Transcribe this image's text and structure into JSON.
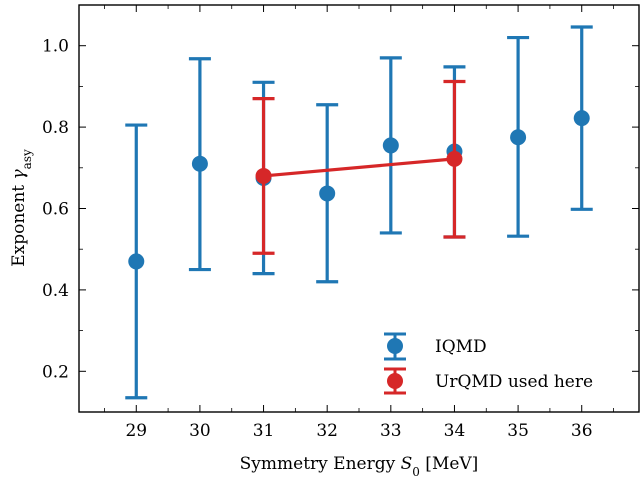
{
  "chart_data": {
    "type": "scatter",
    "xlabel": "Symmetry Energy S₀ [MeV]",
    "xlabel_main": "Symmetry Energy ",
    "xlabel_sym": "S",
    "xlabel_sub": "0",
    "xlabel_unit": " [MeV]",
    "ylabel": "Exponent γ_asy",
    "ylabel_main": "Exponent ",
    "ylabel_sym": "γ",
    "ylabel_sub": "asy",
    "xlim": [
      28.1,
      36.9
    ],
    "ylim": [
      0.1,
      1.1
    ],
    "xticks": [
      29,
      30,
      31,
      32,
      33,
      34,
      35,
      36
    ],
    "yticks": [
      0.2,
      0.4,
      0.6,
      0.8,
      1.0
    ],
    "ytick_labels": [
      "0.2",
      "0.4",
      "0.6",
      "0.8",
      "1.0"
    ],
    "grid": false,
    "legend_position": "bottom-right",
    "series": [
      {
        "name": "IQMD",
        "color": "#1f77b4",
        "connected": false,
        "points": [
          {
            "x": 29,
            "y": 0.47,
            "ylow": 0.135,
            "yhigh": 0.805
          },
          {
            "x": 30,
            "y": 0.71,
            "ylow": 0.45,
            "yhigh": 0.968
          },
          {
            "x": 31,
            "y": 0.675,
            "ylow": 0.44,
            "yhigh": 0.91
          },
          {
            "x": 32,
            "y": 0.637,
            "ylow": 0.42,
            "yhigh": 0.855
          },
          {
            "x": 33,
            "y": 0.755,
            "ylow": 0.54,
            "yhigh": 0.97
          },
          {
            "x": 34,
            "y": 0.74,
            "ylow": 0.53,
            "yhigh": 0.948
          },
          {
            "x": 35,
            "y": 0.775,
            "ylow": 0.532,
            "yhigh": 1.02
          },
          {
            "x": 36,
            "y": 0.822,
            "ylow": 0.598,
            "yhigh": 1.046
          }
        ]
      },
      {
        "name": "UrQMD used here",
        "color": "#d62728",
        "connected": true,
        "points": [
          {
            "x": 31,
            "y": 0.68,
            "ylow": 0.49,
            "yhigh": 0.87
          },
          {
            "x": 34,
            "y": 0.722,
            "ylow": 0.53,
            "yhigh": 0.912
          }
        ]
      }
    ]
  }
}
